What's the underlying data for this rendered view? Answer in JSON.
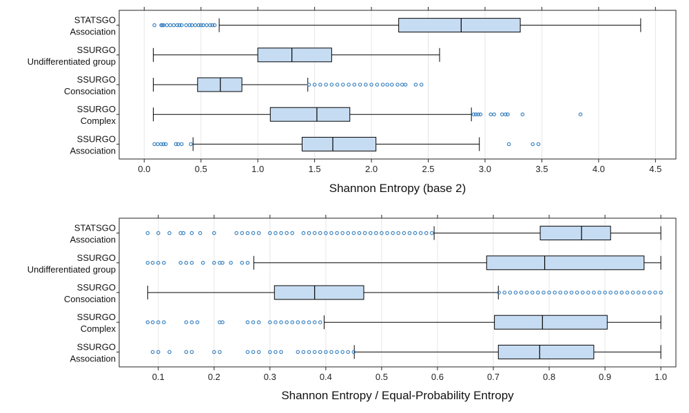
{
  "chart_data": [
    {
      "type": "boxplot",
      "orientation": "horizontal",
      "xlabel": "Shannon Entropy (base 2)",
      "xlim": [
        -0.22,
        4.68
      ],
      "xticks": [
        0.0,
        0.5,
        1.0,
        1.5,
        2.0,
        2.5,
        3.0,
        3.5,
        4.0,
        4.5
      ],
      "xtick_labels": [
        "0.0",
        "0.5",
        "1.0",
        "1.5",
        "2.0",
        "2.5",
        "3.0",
        "3.5",
        "4.0",
        "4.5"
      ],
      "grid": "vertical",
      "categories": [
        {
          "line1": "STATSGO",
          "line2": "Association"
        },
        {
          "line1": "SSURGO",
          "line2": "Undifferentiated group"
        },
        {
          "line1": "SSURGO",
          "line2": "Consociation"
        },
        {
          "line1": "SSURGO",
          "line2": "Complex"
        },
        {
          "line1": "SSURGO",
          "line2": "Association"
        }
      ],
      "boxes": [
        {
          "whisker_low": 0.66,
          "q1": 2.24,
          "median": 2.79,
          "q3": 3.31,
          "whisker_high": 4.37,
          "outliers": [
            0.09,
            0.15,
            0.16,
            0.17,
            0.2,
            0.23,
            0.26,
            0.29,
            0.31,
            0.33,
            0.37,
            0.4,
            0.42,
            0.45,
            0.48,
            0.5,
            0.52,
            0.55,
            0.58,
            0.6,
            0.62
          ]
        },
        {
          "whisker_low": 0.08,
          "q1": 1.0,
          "median": 1.3,
          "q3": 1.65,
          "whisker_high": 2.6,
          "outliers": []
        },
        {
          "whisker_low": 0.08,
          "q1": 0.47,
          "median": 0.67,
          "q3": 0.86,
          "whisker_high": 1.44,
          "outliers": [
            1.45,
            1.5,
            1.55,
            1.6,
            1.65,
            1.7,
            1.75,
            1.8,
            1.85,
            1.9,
            1.95,
            2.0,
            2.05,
            2.1,
            2.14,
            2.18,
            2.23,
            2.27,
            2.3,
            2.39,
            2.44
          ]
        },
        {
          "whisker_low": 0.08,
          "q1": 1.11,
          "median": 1.52,
          "q3": 1.81,
          "whisker_high": 2.88,
          "outliers": [
            2.9,
            2.92,
            2.94,
            2.96,
            3.05,
            3.08,
            3.15,
            3.18,
            3.2,
            3.33,
            3.84
          ]
        },
        {
          "whisker_low": 0.43,
          "q1": 1.39,
          "median": 1.66,
          "q3": 2.04,
          "whisker_high": 2.95,
          "outliers": [
            0.09,
            0.12,
            0.15,
            0.17,
            0.19,
            0.28,
            0.3,
            0.33,
            0.41,
            3.21,
            3.42,
            3.47
          ]
        }
      ]
    },
    {
      "type": "boxplot",
      "orientation": "horizontal",
      "xlabel": "Shannon Entropy / Equal-Probability Entropy",
      "xlim": [
        0.03,
        1.027
      ],
      "xticks": [
        0.1,
        0.2,
        0.3,
        0.4,
        0.5,
        0.6,
        0.7,
        0.8,
        0.9,
        1.0
      ],
      "xtick_labels": [
        "0.1",
        "0.2",
        "0.3",
        "0.4",
        "0.5",
        "0.6",
        "0.7",
        "0.8",
        "0.9",
        "1.0"
      ],
      "grid": "vertical",
      "categories": [
        {
          "line1": "STATSGO",
          "line2": "Association"
        },
        {
          "line1": "SSURGO",
          "line2": "Undifferentiated group"
        },
        {
          "line1": "SSURGO",
          "line2": "Consociation"
        },
        {
          "line1": "SSURGO",
          "line2": "Complex"
        },
        {
          "line1": "SSURGO",
          "line2": "Association"
        }
      ],
      "boxes": [
        {
          "whisker_low": 0.594,
          "q1": 0.784,
          "median": 0.858,
          "q3": 0.91,
          "whisker_high": 1.0,
          "outliers": [
            0.081,
            0.1,
            0.12,
            0.14,
            0.145,
            0.16,
            0.175,
            0.2,
            0.24,
            0.25,
            0.26,
            0.27,
            0.28,
            0.3,
            0.31,
            0.32,
            0.33,
            0.34,
            0.36,
            0.37,
            0.38,
            0.39,
            0.4,
            0.41,
            0.42,
            0.43,
            0.44,
            0.45,
            0.46,
            0.47,
            0.48,
            0.49,
            0.5,
            0.51,
            0.52,
            0.53,
            0.54,
            0.55,
            0.56,
            0.57,
            0.58,
            0.59
          ]
        },
        {
          "whisker_low": 0.271,
          "q1": 0.688,
          "median": 0.792,
          "q3": 0.97,
          "whisker_high": 1.0,
          "outliers": [
            0.081,
            0.09,
            0.1,
            0.11,
            0.14,
            0.15,
            0.16,
            0.18,
            0.2,
            0.21,
            0.215,
            0.23,
            0.25,
            0.26
          ]
        },
        {
          "whisker_low": 0.081,
          "q1": 0.308,
          "median": 0.38,
          "q3": 0.468,
          "whisker_high": 0.709,
          "outliers": [
            0.71,
            0.72,
            0.73,
            0.74,
            0.75,
            0.76,
            0.77,
            0.78,
            0.79,
            0.8,
            0.81,
            0.82,
            0.83,
            0.84,
            0.85,
            0.86,
            0.87,
            0.88,
            0.89,
            0.9,
            0.91,
            0.92,
            0.93,
            0.94,
            0.95,
            0.96,
            0.97,
            0.98,
            0.99,
            1.0
          ]
        },
        {
          "whisker_low": 0.397,
          "q1": 0.702,
          "median": 0.788,
          "q3": 0.904,
          "whisker_high": 1.0,
          "outliers": [
            0.081,
            0.09,
            0.1,
            0.11,
            0.15,
            0.16,
            0.17,
            0.21,
            0.215,
            0.26,
            0.27,
            0.28,
            0.3,
            0.31,
            0.32,
            0.33,
            0.34,
            0.35,
            0.36,
            0.37,
            0.38,
            0.39
          ]
        },
        {
          "whisker_low": 0.451,
          "q1": 0.709,
          "median": 0.783,
          "q3": 0.88,
          "whisker_high": 1.0,
          "outliers": [
            0.09,
            0.1,
            0.12,
            0.15,
            0.16,
            0.2,
            0.21,
            0.26,
            0.27,
            0.28,
            0.3,
            0.31,
            0.32,
            0.35,
            0.36,
            0.37,
            0.38,
            0.39,
            0.4,
            0.41,
            0.42,
            0.43,
            0.44,
            0.45
          ]
        }
      ]
    }
  ],
  "colors": {
    "box_fill": "#c6dcf3",
    "outlier_stroke": "#3a82c0",
    "line": "#000000",
    "grid": "#e6e6e6",
    "frame": "#222222"
  }
}
